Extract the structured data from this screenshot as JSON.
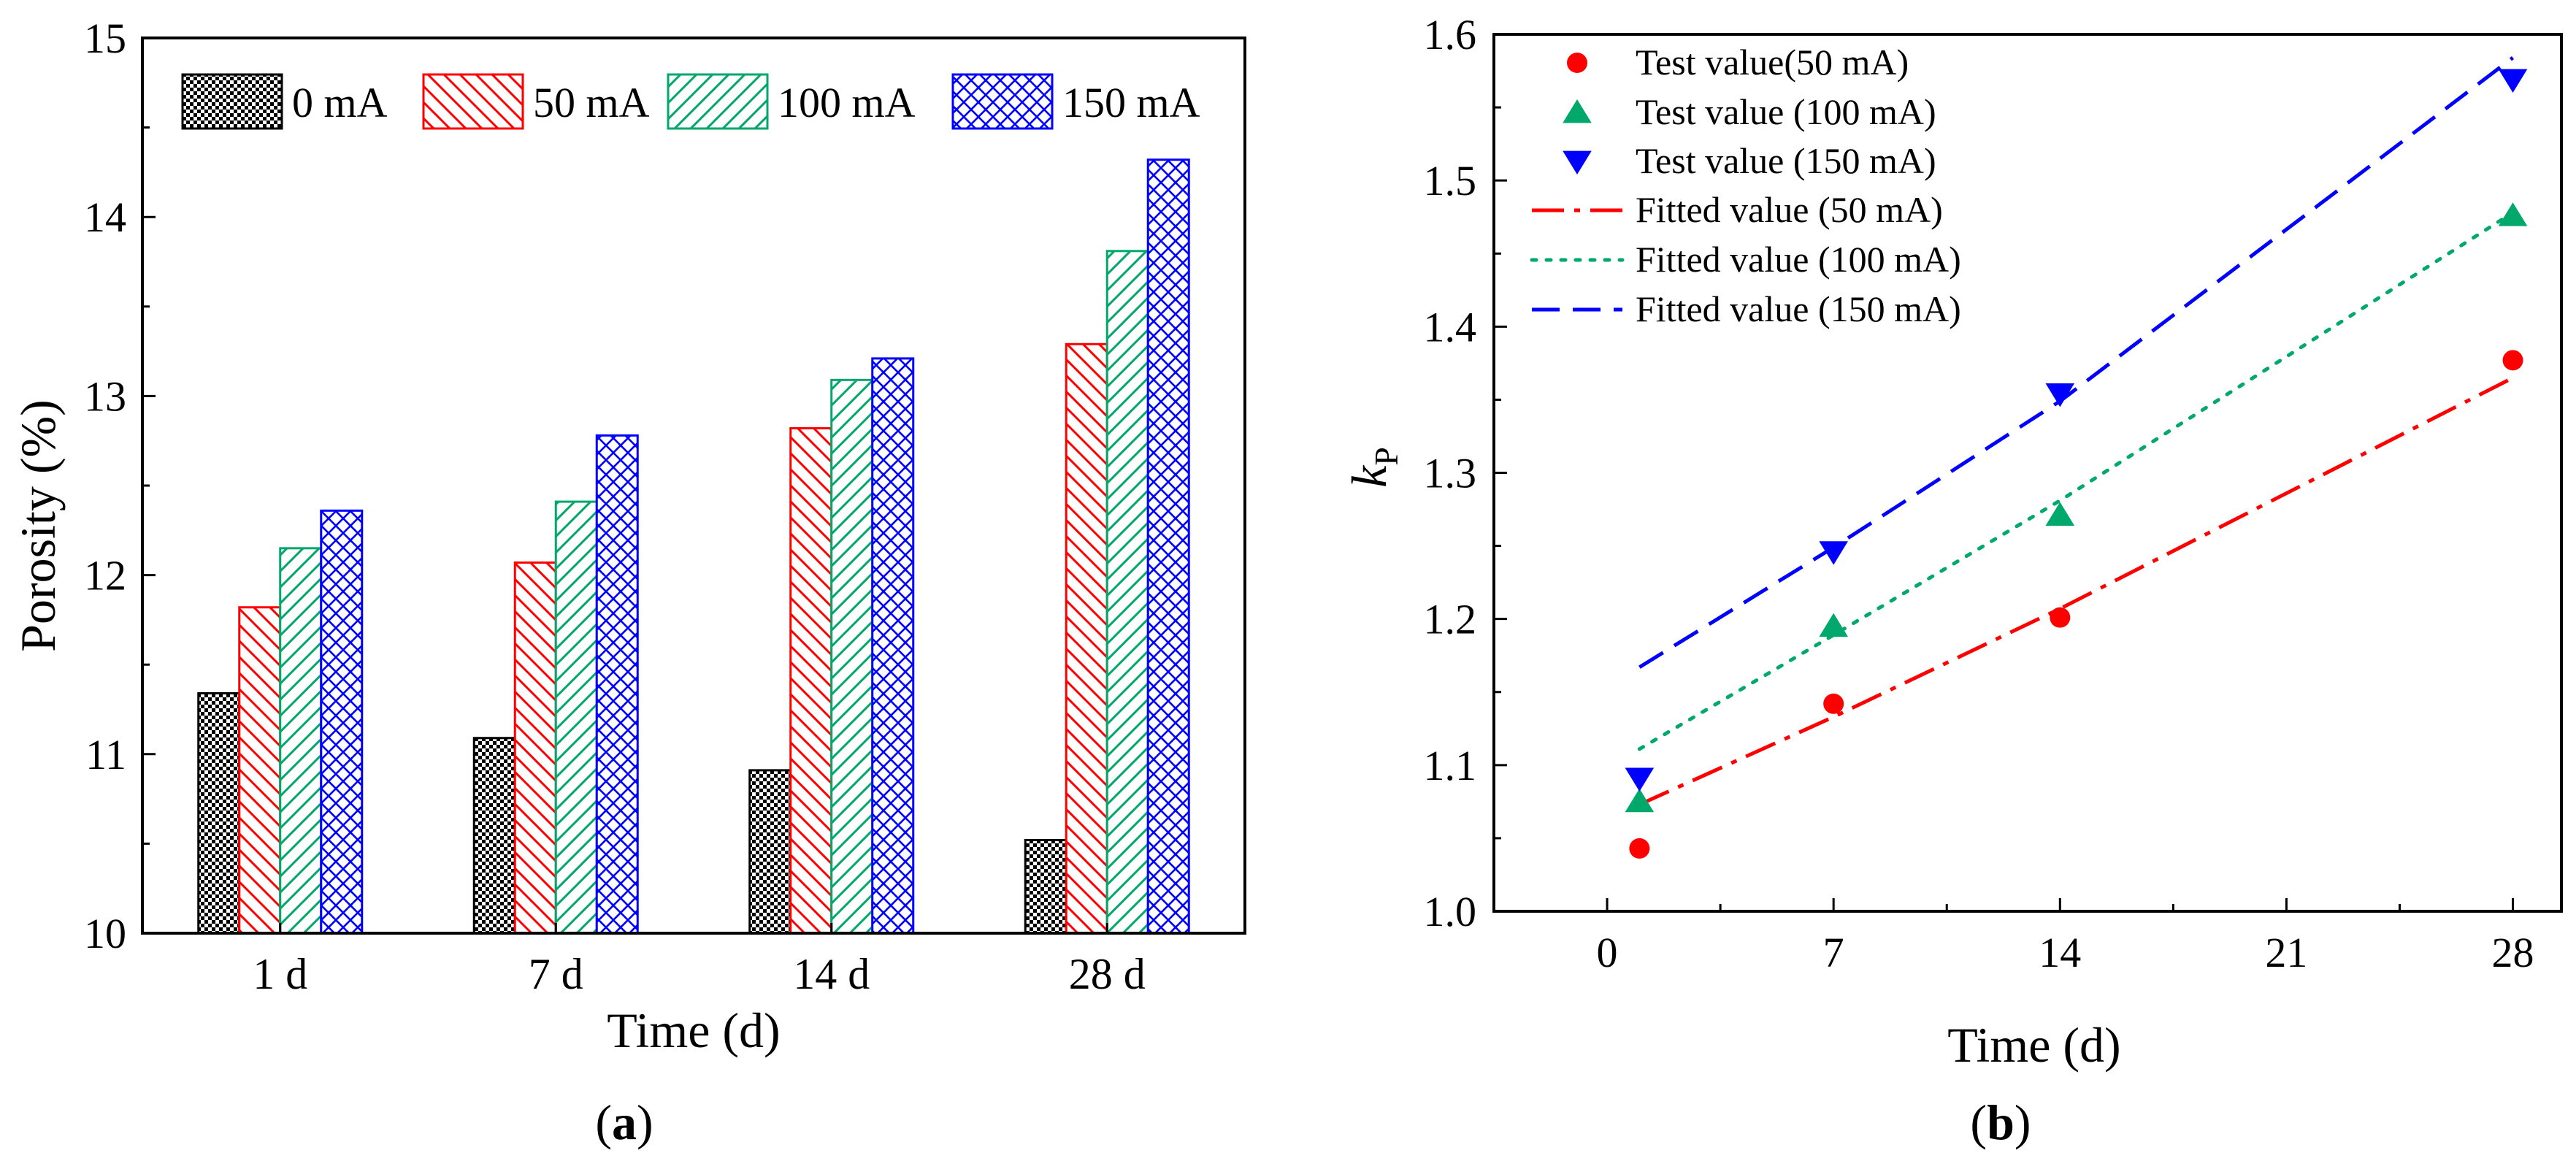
{
  "colors": {
    "c0": "#000000",
    "c50": "#ff0000",
    "c100": "#00a86b",
    "c150": "#0000ff"
  },
  "chart_data": [
    {
      "panel": "(a)",
      "type": "bar",
      "title": "",
      "xlabel": "Time (d)",
      "ylabel": "Porosity (%)",
      "ylim": [
        10,
        15
      ],
      "yticks": [
        10,
        11,
        12,
        13,
        14,
        15
      ],
      "categories": [
        "1 d",
        "7 d",
        "14 d",
        "28 d"
      ],
      "legend_position": "top",
      "series": [
        {
          "name": "0 mA",
          "pattern": "checker",
          "values": [
            11.34,
            11.09,
            10.91,
            10.52
          ]
        },
        {
          "name": "50 mA",
          "pattern": "hatch-backslash",
          "values": [
            11.82,
            12.07,
            12.82,
            13.29
          ]
        },
        {
          "name": "100 mA",
          "pattern": "hatch-slash",
          "values": [
            12.15,
            12.41,
            13.09,
            13.81
          ]
        },
        {
          "name": "150 mA",
          "pattern": "crosshatch",
          "values": [
            12.36,
            12.78,
            13.21,
            14.32
          ]
        }
      ]
    },
    {
      "panel": "(b)",
      "type": "scatter",
      "title": "",
      "xlabel": "Time (d)",
      "ylabel_main": "k",
      "ylabel_sub": "P",
      "xlim": [
        -3.5,
        29.5
      ],
      "ylim": [
        1.0,
        1.6
      ],
      "xticks": [
        0,
        7,
        14,
        21,
        28
      ],
      "yticks": [
        "1.0",
        "1.1",
        "1.2",
        "1.3",
        "1.4",
        "1.5",
        "1.6"
      ],
      "legend_position": "top-left",
      "points": [
        {
          "name": "Test value(50 mA)",
          "marker": "circle",
          "x": [
            1,
            7,
            14,
            28
          ],
          "y": [
            1.043,
            1.142,
            1.201,
            1.377
          ]
        },
        {
          "name": "Test value (100 mA)",
          "marker": "triangle-up",
          "x": [
            1,
            7,
            14,
            28
          ],
          "y": [
            1.075,
            1.195,
            1.271,
            1.476
          ]
        },
        {
          "name": "Test value (150 mA)",
          "marker": "triangle-down",
          "x": [
            1,
            7,
            14,
            28
          ],
          "y": [
            1.091,
            1.246,
            1.354,
            1.569
          ]
        }
      ],
      "lines": [
        {
          "name": "Fitted value (50 mA)",
          "dash": "dash-dot",
          "x": [
            1,
            7,
            14,
            28
          ],
          "y": [
            1.073,
            1.133,
            1.207,
            1.365
          ]
        },
        {
          "name": "Fitted value (100 mA)",
          "dash": "dot",
          "x": [
            1,
            7,
            14,
            28
          ],
          "y": [
            1.111,
            1.189,
            1.281,
            1.478
          ]
        },
        {
          "name": "Fitted value (150 mA)",
          "dash": "dash",
          "x": [
            1,
            7,
            14,
            28
          ],
          "y": [
            1.167,
            1.249,
            1.349,
            1.584
          ]
        }
      ]
    }
  ]
}
